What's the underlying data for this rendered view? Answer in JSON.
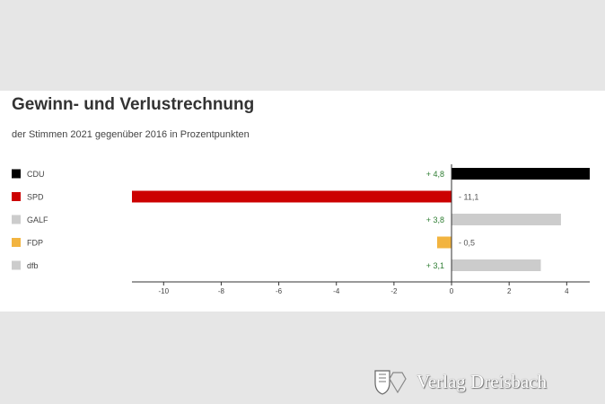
{
  "chart_data": {
    "type": "bar",
    "orientation": "horizontal",
    "title": "Gewinn- und Verlustrechnung",
    "subtitle": "der Stimmen 2021 gegenüber 2016 in Prozentpunkten",
    "categories": [
      "CDU",
      "SPD",
      "GALF",
      "FDP",
      "dfb"
    ],
    "values": [
      4.8,
      -11.1,
      3.8,
      -0.5,
      3.1
    ],
    "value_labels": [
      "+ 4,8",
      "- 11,1",
      "+ 3,8",
      "- 0,5",
      "+ 3,1"
    ],
    "colors": [
      "#000000",
      "#cc0000",
      "#cccccc",
      "#f2b440",
      "#cccccc"
    ],
    "xlim": [
      -11.1,
      4.8
    ],
    "xticks": [
      -10,
      -8,
      -6,
      -4,
      -2,
      0,
      2,
      4
    ],
    "grid": false,
    "legend_position": "left"
  },
  "watermark": {
    "text": "Verlag Dreisbach"
  }
}
